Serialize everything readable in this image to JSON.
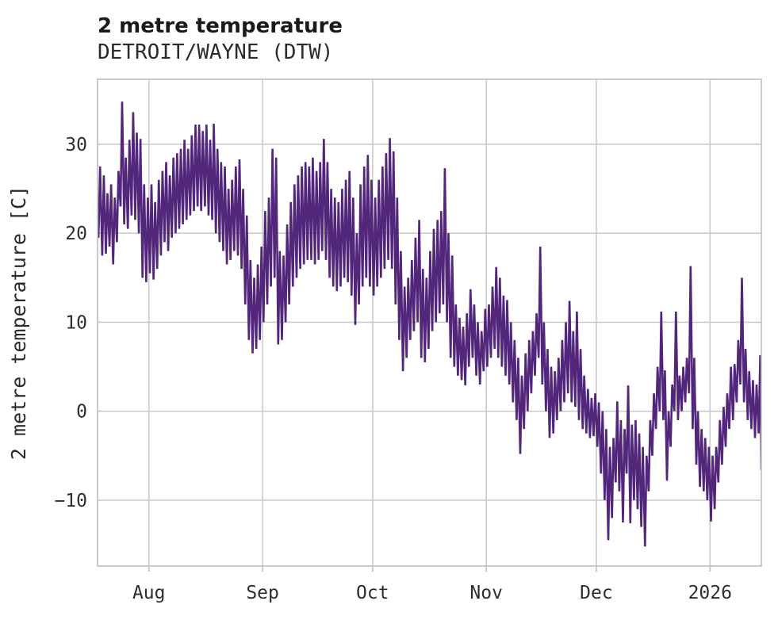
{
  "header": {
    "title": "2 metre temperature",
    "subtitle": "DETROIT/WAYNE (DTW)"
  },
  "chart_data": {
    "type": "line",
    "title": "2 metre temperature",
    "subtitle": "DETROIT/WAYNE (DTW)",
    "xlabel": "",
    "ylabel": "2 metre temperature [C]",
    "grid": true,
    "legend": "none",
    "line_color": "#52267a",
    "grid_color": "#cbcbcb",
    "border_color": "#c4c4c4",
    "ylim": [
      -17.4,
      37.3
    ],
    "days_total": 181,
    "yticks": [
      {
        "value": 30,
        "label": "30"
      },
      {
        "value": 20,
        "label": "20"
      },
      {
        "value": 10,
        "label": "10"
      },
      {
        "value": 0,
        "label": "0"
      },
      {
        "value": -10,
        "label": "−10"
      }
    ],
    "xticks": [
      {
        "day": 14,
        "label": "Aug"
      },
      {
        "day": 45,
        "label": "Sep"
      },
      {
        "day": 75,
        "label": "Oct"
      },
      {
        "day": 106,
        "label": "Nov"
      },
      {
        "day": 136,
        "label": "Dec"
      },
      {
        "day": 167,
        "label": "2026"
      }
    ],
    "daily": {
      "t_max": [
        27.5,
        26.5,
        24.5,
        25.5,
        24,
        27,
        34.8,
        28.5,
        30.5,
        33.6,
        31.3,
        30.6,
        25.5,
        24,
        25.5,
        23.5,
        26,
        27,
        28,
        26.5,
        28.5,
        29,
        29.5,
        30.5,
        29.5,
        31,
        32.2,
        32.2,
        31.5,
        32.2,
        30.5,
        32.3,
        29.5,
        28,
        27.5,
        25,
        26,
        27.5,
        28.3,
        25,
        22,
        17,
        15,
        16.5,
        18.5,
        22.5,
        24,
        29.5,
        28.5,
        18,
        17.5,
        21,
        23.5,
        25.5,
        26.5,
        27.5,
        28,
        27.5,
        28.5,
        27,
        28,
        30.6,
        28,
        25,
        24,
        23.5,
        25,
        26,
        27,
        24,
        20,
        25.5,
        27.5,
        28.8,
        26,
        24,
        26,
        27.5,
        29,
        30.7,
        29.2,
        24,
        18,
        14,
        15,
        17,
        19.5,
        21.5,
        16,
        15,
        18,
        20.5,
        21.5,
        22.5,
        27.3,
        20,
        17.5,
        12,
        10.5,
        9.5,
        11,
        13.7,
        12,
        10,
        9,
        11.5,
        12,
        14,
        16.2,
        15,
        13,
        12.5,
        10,
        8,
        6,
        4,
        6.5,
        8,
        9,
        11,
        18.5,
        10,
        7,
        5,
        4.5,
        6,
        8,
        10,
        12.4,
        9,
        11.2,
        7,
        4,
        2.5,
        1.5,
        2,
        1,
        0,
        -2,
        -4,
        -3,
        1.1,
        -1,
        -2,
        2.9,
        -1.5,
        -1,
        -2.5,
        -4,
        -5,
        -1,
        2,
        5,
        11.2,
        4.6,
        0,
        3,
        11.2,
        4,
        5,
        6,
        16.3,
        6,
        0,
        -2,
        -3,
        -4,
        -5,
        -4,
        -1,
        0.5,
        2,
        5,
        5.3,
        8,
        15,
        7,
        4.5,
        3.5,
        3,
        6.3,
        3
      ],
      "t_min": [
        19.5,
        17.5,
        17.7,
        18.5,
        16.5,
        19,
        23,
        21,
        20.5,
        22,
        21.5,
        20,
        15,
        14.5,
        15.5,
        14.8,
        16,
        17.5,
        19,
        18,
        19.5,
        20,
        20.5,
        21,
        21.5,
        22,
        22.5,
        23,
        22.5,
        23,
        22,
        21.5,
        20,
        19,
        18,
        16.5,
        17,
        18,
        17.5,
        16,
        12,
        8,
        6.5,
        7,
        8,
        10,
        12,
        14,
        15,
        7.5,
        8,
        10,
        12,
        14,
        15,
        16,
        16.5,
        17,
        17,
        16.5,
        17,
        18,
        17,
        15,
        14,
        13.5,
        14,
        15,
        14.5,
        13,
        9.7,
        12,
        14,
        15,
        14,
        13,
        14,
        15,
        16,
        17,
        16,
        12,
        8,
        4.5,
        6,
        8,
        9,
        10,
        6,
        5.5,
        7,
        9,
        10,
        11,
        12,
        10,
        6,
        5,
        4,
        3.5,
        2.9,
        5,
        6,
        4,
        3,
        4.5,
        5,
        6,
        7,
        6,
        5,
        4,
        3,
        1,
        -1,
        -4.8,
        -2,
        0,
        2,
        4,
        6,
        3,
        0,
        -3,
        -2.5,
        -1,
        0,
        1,
        2,
        1,
        0.5,
        -1,
        -2,
        -2.5,
        -3,
        -2.8,
        -4,
        -7,
        -10,
        -14.5,
        -12,
        -8,
        -9,
        -12.5,
        -7,
        -12.6,
        -10,
        -11,
        -13,
        -15.2,
        -9,
        -5,
        -2,
        0,
        -1,
        -7.8,
        -4,
        0,
        -1,
        0,
        1,
        2,
        -2,
        -6,
        -8.5,
        -9,
        -10,
        -12.4,
        -11,
        -8,
        -6,
        -4,
        -2,
        -1,
        1,
        3,
        1,
        -1,
        -2,
        -3,
        -2.5,
        -6.6
      ]
    }
  }
}
